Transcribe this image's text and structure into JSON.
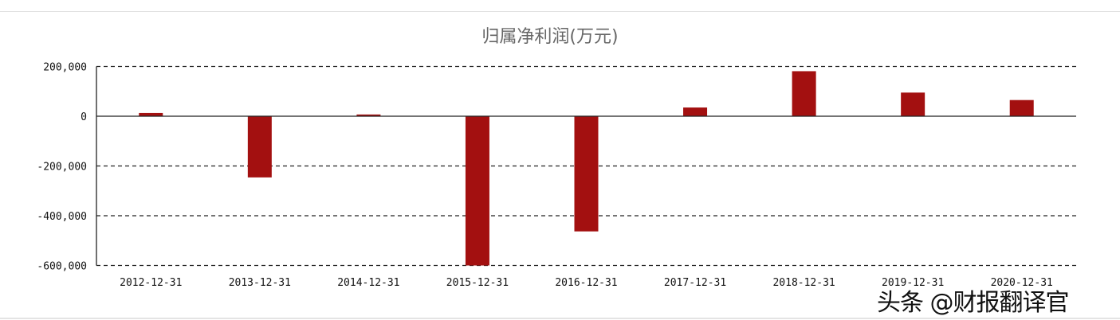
{
  "chart_data": {
    "type": "bar",
    "title": "归属净利润(万元)",
    "categories": [
      "2012-12-31",
      "2013-12-31",
      "2014-12-31",
      "2015-12-31",
      "2016-12-31",
      "2017-12-31",
      "2018-12-31",
      "2019-12-31",
      "2020-12-31"
    ],
    "values": [
      13000,
      -246000,
      7000,
      -600000,
      -463000,
      35000,
      181000,
      95000,
      65000
    ],
    "ylim": [
      -600000,
      200000
    ],
    "yticks": [
      200000,
      0,
      -200000,
      -400000,
      -600000
    ],
    "ytick_labels": [
      "200,000",
      "0",
      "-200,000",
      "-400,000",
      "-600,000"
    ],
    "grid": "horizontal dashed",
    "bar_color": "#a31010",
    "xlabel": "",
    "ylabel": ""
  },
  "watermark": "头条 @财报翻译官"
}
